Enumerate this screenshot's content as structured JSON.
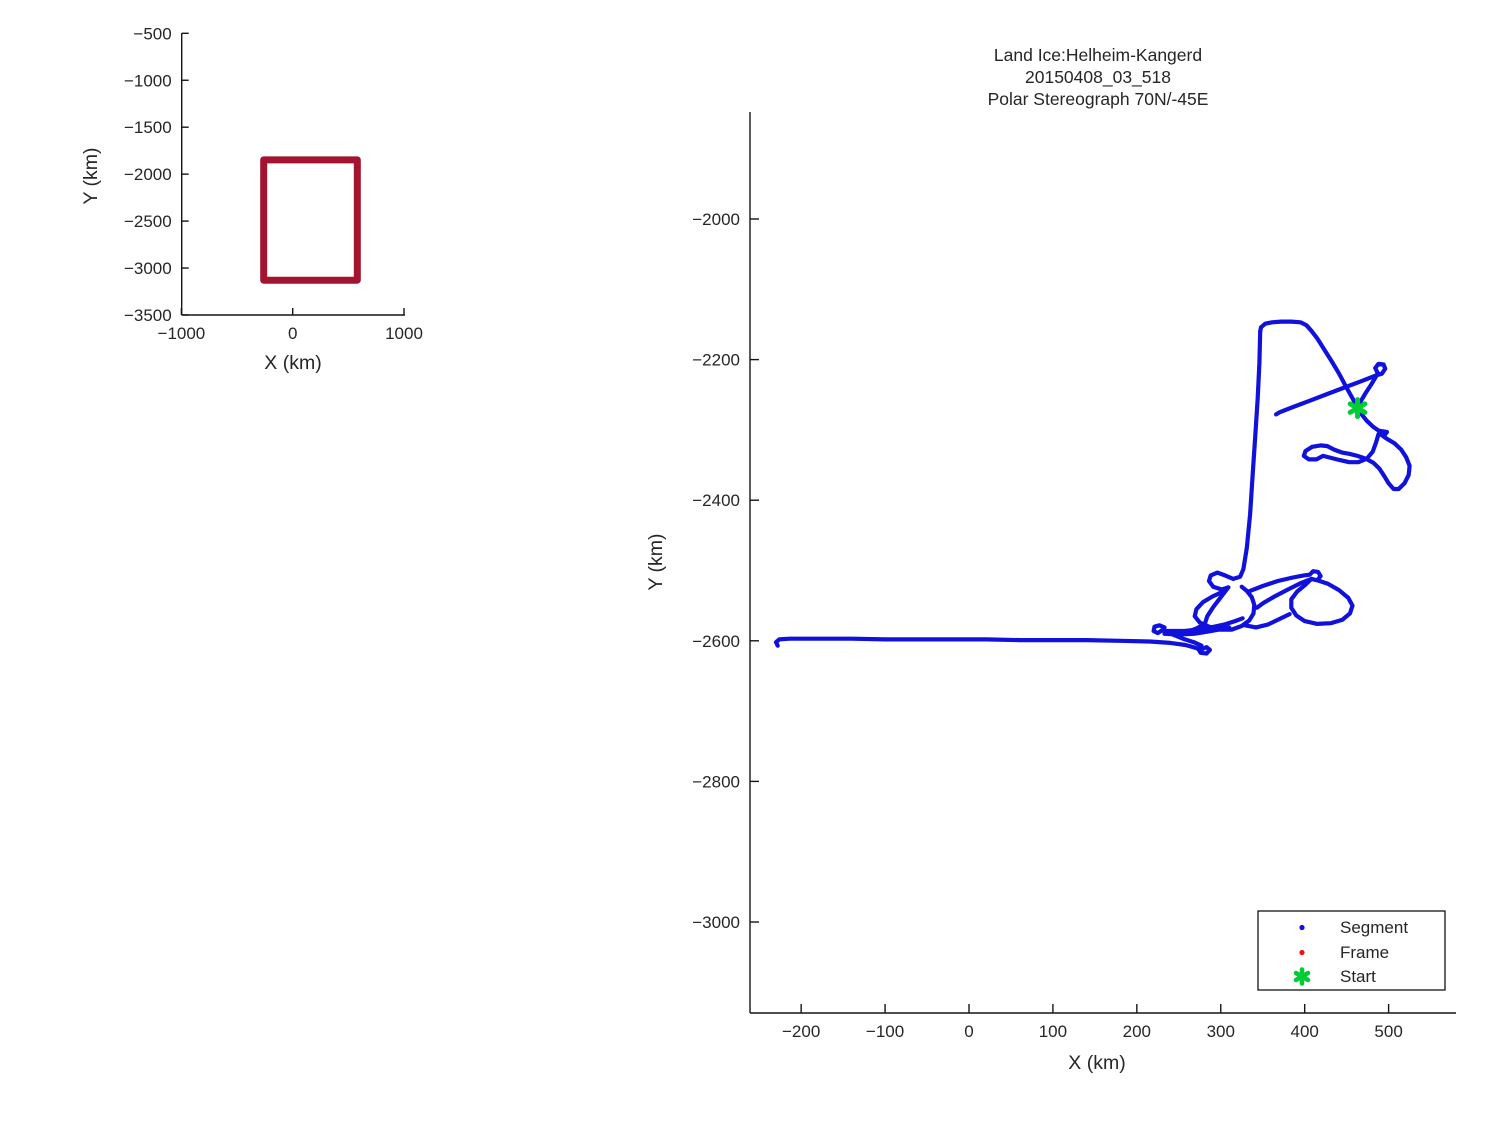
{
  "figure": {
    "background": "#ffffff",
    "text_color": "#262626",
    "axis_color": "#151515"
  },
  "chart_data": [
    {
      "type": "line",
      "name": "overview-extent-plot",
      "title": "",
      "xlabel": "X (km)",
      "ylabel": "Y (km)",
      "xticks": [
        -1000,
        0,
        1000
      ],
      "yticks": [
        -500,
        -1000,
        -1500,
        -2000,
        -2500,
        -3000,
        -3500
      ],
      "xlim": [
        -1000,
        1010
      ],
      "ylim": [
        -3500,
        -500
      ],
      "grid": false,
      "legend": null,
      "series": [
        {
          "name": "coverage-extent-rectangle",
          "color": "#A2142F",
          "linewidth": 7,
          "points": [
            [
              -261,
              -1848
            ],
            [
              580,
              -1848
            ],
            [
              580,
              -3129
            ],
            [
              -261,
              -3129
            ],
            [
              -261,
              -1848
            ]
          ]
        }
      ]
    },
    {
      "type": "scatter",
      "name": "flight-track-plot",
      "title_lines": [
        "Land Ice:Helheim-Kangerd",
        "20150408_03_518",
        "Polar Stereograph 70N/-45E"
      ],
      "xlabel": "X (km)",
      "ylabel": "Y (km)",
      "xticks": [
        -200,
        -100,
        0,
        100,
        200,
        300,
        400,
        500
      ],
      "yticks": [
        -2000,
        -2200,
        -2400,
        -2600,
        -2800,
        -3000
      ],
      "xlim": [
        -261,
        580
      ],
      "ylim": [
        -3129,
        -1848
      ],
      "grid": false,
      "legend": {
        "position": "southeast",
        "items": [
          {
            "label": "Segment",
            "marker": "dot",
            "color": "#1111dd"
          },
          {
            "label": "Frame",
            "marker": "dot",
            "color": "#ee1111"
          },
          {
            "label": "Start",
            "marker": "star6",
            "color": "#00cc33"
          }
        ]
      },
      "track_color": "#1111dd",
      "track_linewidth": 4.2,
      "start_point": [
        463,
        -2269
      ],
      "track": [
        [
          [
            -228,
            -2607
          ],
          [
            -230,
            -2602
          ],
          [
            -226,
            -2598
          ],
          [
            -214,
            -2597
          ],
          [
            -180,
            -2597
          ],
          [
            -140,
            -2597
          ],
          [
            -100,
            -2598
          ],
          [
            -60,
            -2598
          ],
          [
            -20,
            -2598
          ],
          [
            20,
            -2598
          ],
          [
            60,
            -2599
          ],
          [
            100,
            -2599
          ],
          [
            140,
            -2599
          ],
          [
            180,
            -2600
          ],
          [
            215,
            -2601
          ],
          [
            240,
            -2603
          ],
          [
            258,
            -2606
          ],
          [
            270,
            -2610
          ],
          [
            276,
            -2613
          ],
          [
            283,
            -2609
          ],
          [
            287,
            -2613
          ],
          [
            283,
            -2618
          ],
          [
            276,
            -2617
          ],
          [
            273,
            -2611
          ],
          [
            277,
            -2607
          ],
          [
            268,
            -2602
          ],
          [
            255,
            -2597
          ],
          [
            243,
            -2591
          ],
          [
            235,
            -2587
          ],
          [
            230,
            -2585
          ],
          [
            225,
            -2589
          ],
          [
            220,
            -2586
          ],
          [
            221,
            -2580
          ],
          [
            227,
            -2578
          ],
          [
            233,
            -2581
          ],
          [
            232,
            -2586
          ],
          [
            243,
            -2586
          ],
          [
            257,
            -2586
          ],
          [
            272,
            -2584
          ],
          [
            288,
            -2581
          ],
          [
            304,
            -2577
          ],
          [
            317,
            -2572
          ],
          [
            326,
            -2568
          ]
        ],
        [
          [
            233,
            -2590
          ],
          [
            250,
            -2591
          ],
          [
            268,
            -2590
          ],
          [
            284,
            -2587
          ],
          [
            298,
            -2584
          ],
          [
            310,
            -2581
          ]
        ],
        [
          [
            347,
            -2160
          ],
          [
            346,
            -2205
          ],
          [
            344,
            -2255
          ],
          [
            341,
            -2310
          ],
          [
            338,
            -2365
          ],
          [
            335,
            -2420
          ],
          [
            331,
            -2468
          ],
          [
            327,
            -2498
          ],
          [
            323,
            -2509
          ],
          [
            315,
            -2512
          ],
          [
            305,
            -2507
          ],
          [
            296,
            -2503
          ],
          [
            288,
            -2507
          ],
          [
            286,
            -2515
          ],
          [
            291,
            -2523
          ],
          [
            301,
            -2527
          ],
          [
            309,
            -2524
          ],
          [
            301,
            -2531
          ],
          [
            290,
            -2537
          ],
          [
            279,
            -2545
          ],
          [
            271,
            -2555
          ],
          [
            269,
            -2565
          ],
          [
            275,
            -2574
          ],
          [
            286,
            -2580
          ],
          [
            299,
            -2584
          ],
          [
            313,
            -2584
          ],
          [
            325,
            -2579
          ],
          [
            334,
            -2571
          ],
          [
            339,
            -2561
          ],
          [
            340,
            -2549
          ],
          [
            337,
            -2538
          ],
          [
            331,
            -2529
          ],
          [
            325,
            -2523
          ]
        ],
        [
          [
            309,
            -2524
          ],
          [
            300,
            -2538
          ],
          [
            291,
            -2552
          ],
          [
            284,
            -2565
          ],
          [
            281,
            -2576
          ],
          [
            272,
            -2582
          ],
          [
            259,
            -2588
          ],
          [
            247,
            -2591
          ]
        ],
        [
          [
            333,
            -2530
          ],
          [
            350,
            -2522
          ],
          [
            368,
            -2515
          ],
          [
            386,
            -2510
          ],
          [
            399,
            -2507
          ],
          [
            406,
            -2506
          ],
          [
            410,
            -2501
          ],
          [
            416,
            -2502
          ],
          [
            419,
            -2508
          ],
          [
            415,
            -2514
          ],
          [
            408,
            -2512
          ],
          [
            395,
            -2518
          ],
          [
            380,
            -2527
          ],
          [
            364,
            -2537
          ],
          [
            351,
            -2546
          ],
          [
            343,
            -2553
          ]
        ],
        [
          [
            415,
            -2514
          ],
          [
            428,
            -2519
          ],
          [
            441,
            -2528
          ],
          [
            452,
            -2539
          ],
          [
            457,
            -2550
          ],
          [
            454,
            -2561
          ],
          [
            445,
            -2570
          ],
          [
            431,
            -2575
          ],
          [
            415,
            -2576
          ],
          [
            400,
            -2572
          ],
          [
            390,
            -2564
          ],
          [
            384,
            -2553
          ],
          [
            384,
            -2541
          ],
          [
            391,
            -2530
          ],
          [
            401,
            -2520
          ],
          [
            408,
            -2512
          ]
        ],
        [
          [
            329,
            -2578
          ],
          [
            342,
            -2581
          ],
          [
            356,
            -2577
          ],
          [
            370,
            -2569
          ],
          [
            382,
            -2562
          ]
        ],
        [
          [
            347,
            -2160
          ],
          [
            348,
            -2154
          ],
          [
            353,
            -2149
          ],
          [
            361,
            -2147
          ],
          [
            372,
            -2146
          ],
          [
            384,
            -2146
          ],
          [
            395,
            -2147
          ],
          [
            402,
            -2151
          ],
          [
            408,
            -2159
          ],
          [
            415,
            -2170
          ],
          [
            423,
            -2185
          ],
          [
            432,
            -2202
          ],
          [
            441,
            -2220
          ],
          [
            449,
            -2238
          ],
          [
            456,
            -2253
          ],
          [
            461,
            -2264
          ],
          [
            463,
            -2269
          ]
        ],
        [
          [
            463,
            -2269
          ],
          [
            467,
            -2259
          ],
          [
            473,
            -2247
          ],
          [
            479,
            -2236
          ],
          [
            484,
            -2226
          ],
          [
            487,
            -2219
          ],
          [
            484,
            -2212
          ],
          [
            488,
            -2206
          ],
          [
            494,
            -2207
          ],
          [
            496,
            -2213
          ],
          [
            492,
            -2220
          ],
          [
            486,
            -2222
          ],
          [
            469,
            -2230
          ],
          [
            449,
            -2239
          ],
          [
            427,
            -2249
          ],
          [
            405,
            -2259
          ],
          [
            385,
            -2268
          ],
          [
            370,
            -2275
          ],
          [
            366,
            -2278
          ]
        ],
        [
          [
            463,
            -2269
          ],
          [
            468,
            -2278
          ],
          [
            474,
            -2287
          ],
          [
            481,
            -2295
          ],
          [
            488,
            -2301
          ],
          [
            493,
            -2302
          ],
          [
            498,
            -2303
          ],
          [
            495,
            -2308
          ],
          [
            489,
            -2305
          ],
          [
            497,
            -2312
          ],
          [
            507,
            -2319
          ],
          [
            515,
            -2328
          ],
          [
            521,
            -2339
          ],
          [
            525,
            -2351
          ],
          [
            524,
            -2364
          ],
          [
            519,
            -2376
          ],
          [
            512,
            -2384
          ],
          [
            506,
            -2384
          ],
          [
            500,
            -2376
          ],
          [
            495,
            -2366
          ],
          [
            489,
            -2355
          ],
          [
            482,
            -2347
          ],
          [
            473,
            -2341
          ],
          [
            463,
            -2337
          ],
          [
            453,
            -2334
          ],
          [
            444,
            -2332
          ],
          [
            435,
            -2328
          ],
          [
            427,
            -2323
          ],
          [
            419,
            -2322
          ],
          [
            409,
            -2324
          ],
          [
            401,
            -2330
          ],
          [
            399,
            -2337
          ],
          [
            405,
            -2342
          ],
          [
            414,
            -2342
          ],
          [
            422,
            -2337
          ],
          [
            432,
            -2340
          ],
          [
            442,
            -2343
          ],
          [
            453,
            -2346
          ],
          [
            464,
            -2346
          ],
          [
            474,
            -2341
          ],
          [
            481,
            -2331
          ],
          [
            485,
            -2318
          ],
          [
            488,
            -2306
          ]
        ]
      ]
    }
  ]
}
